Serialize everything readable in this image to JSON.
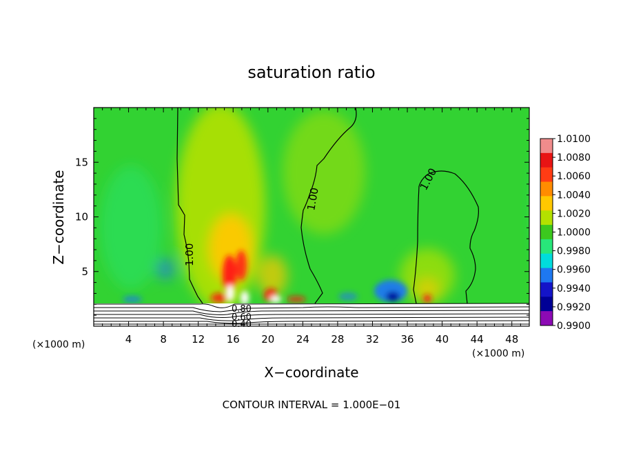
{
  "chart_data": {
    "type": "heatmap",
    "title": "saturation ratio",
    "xlabel": "X−coordinate",
    "ylabel": "Z−coordinate",
    "x_unit_left": "(×1000 m)",
    "x_unit_right": "(×1000 m)",
    "footer": "CONTOUR INTERVAL = 1.000E−01",
    "xlim": [
      0,
      50
    ],
    "ylim": [
      0,
      20
    ],
    "x_ticks": [
      4,
      8,
      12,
      16,
      20,
      24,
      28,
      32,
      36,
      40,
      44,
      48
    ],
    "y_ticks": [
      5,
      10,
      15
    ],
    "colorbar": {
      "levels": [
        "1.0100",
        "1.0080",
        "1.0060",
        "1.0040",
        "1.0020",
        "1.0000",
        "0.9980",
        "0.9960",
        "0.9940",
        "0.9920",
        "0.9900"
      ],
      "colors": [
        "#f08c8c",
        "#e81414",
        "#ff3c14",
        "#ff8c00",
        "#ffc800",
        "#b4e100",
        "#3cc81e",
        "#28e67a",
        "#00dcdc",
        "#1e78f0",
        "#1414c8",
        "#000096",
        "#8c0ab4"
      ]
    },
    "contour_labels": [
      "1.00",
      "1.00",
      "1.00",
      "0.80",
      "0.60",
      "0.40"
    ],
    "fill_colors": {
      "background": "#32d232",
      "hot": "#ff1414",
      "warm": "#ffc800",
      "mild": "#b4e100",
      "cool": "#28e67a",
      "cold": "#1e78f0",
      "coldest": "#000096",
      "saturated": "#ffffff"
    }
  }
}
